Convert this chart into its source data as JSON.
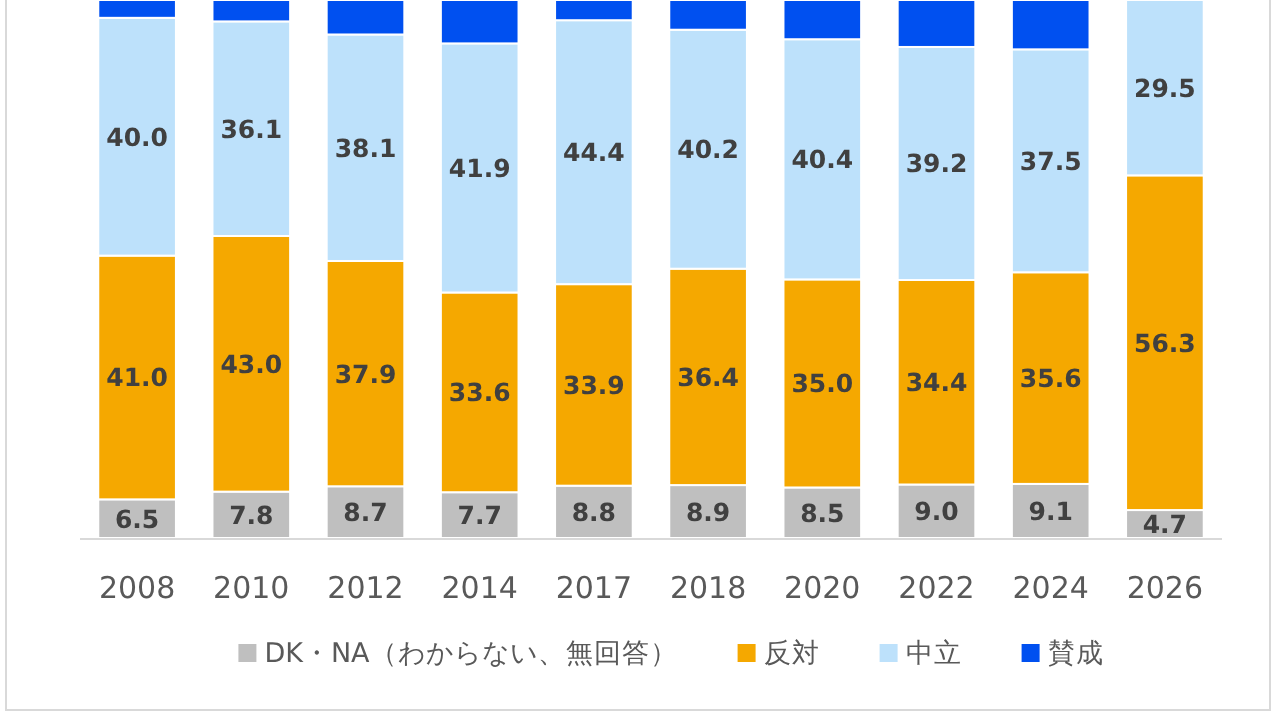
{
  "chart_data": {
    "type": "bar",
    "stacked": true,
    "categories": [
      "2008",
      "2010",
      "2012",
      "2014",
      "2017",
      "2018",
      "2020",
      "2022",
      "2024",
      "2026"
    ],
    "ylim": [
      0,
      90.5
    ],
    "tick_labels": "x",
    "legend": "bottom",
    "series": [
      {
        "name": "DK・NA（わからない、無回答）",
        "color": "#bfbfbf",
        "values": [
          6.5,
          7.8,
          8.7,
          7.7,
          8.8,
          8.9,
          8.5,
          9.0,
          9.1,
          4.7
        ],
        "value_labels": [
          "6.5",
          "7.8",
          "8.7",
          "7.7",
          "8.8",
          "8.9",
          "8.5",
          "9.0",
          "9.1",
          "4.7"
        ]
      },
      {
        "name": "反対",
        "color": "#f5a800",
        "values": [
          41.0,
          43.0,
          37.9,
          33.6,
          33.9,
          36.4,
          35.0,
          34.4,
          35.6,
          56.3
        ],
        "value_labels": [
          "41.0",
          "43.0",
          "37.9",
          "33.6",
          "33.9",
          "36.4",
          "35.0",
          "34.4",
          "35.6",
          "56.3"
        ]
      },
      {
        "name": "中立",
        "color": "#bde1fb",
        "values": [
          40.0,
          36.1,
          38.1,
          41.9,
          44.4,
          40.2,
          40.4,
          39.2,
          37.5,
          29.5
        ],
        "value_labels": [
          "40.0",
          "36.1",
          "38.1",
          "41.9",
          "44.4",
          "40.2",
          "40.4",
          "39.2",
          "37.5",
          "29.5"
        ]
      },
      {
        "name": "賛成",
        "color": "#0050f0",
        "values": [
          3.0,
          3.6,
          5.8,
          7.3,
          3.4,
          5.0,
          6.6,
          7.9,
          8.3,
          null
        ]
      }
    ]
  }
}
